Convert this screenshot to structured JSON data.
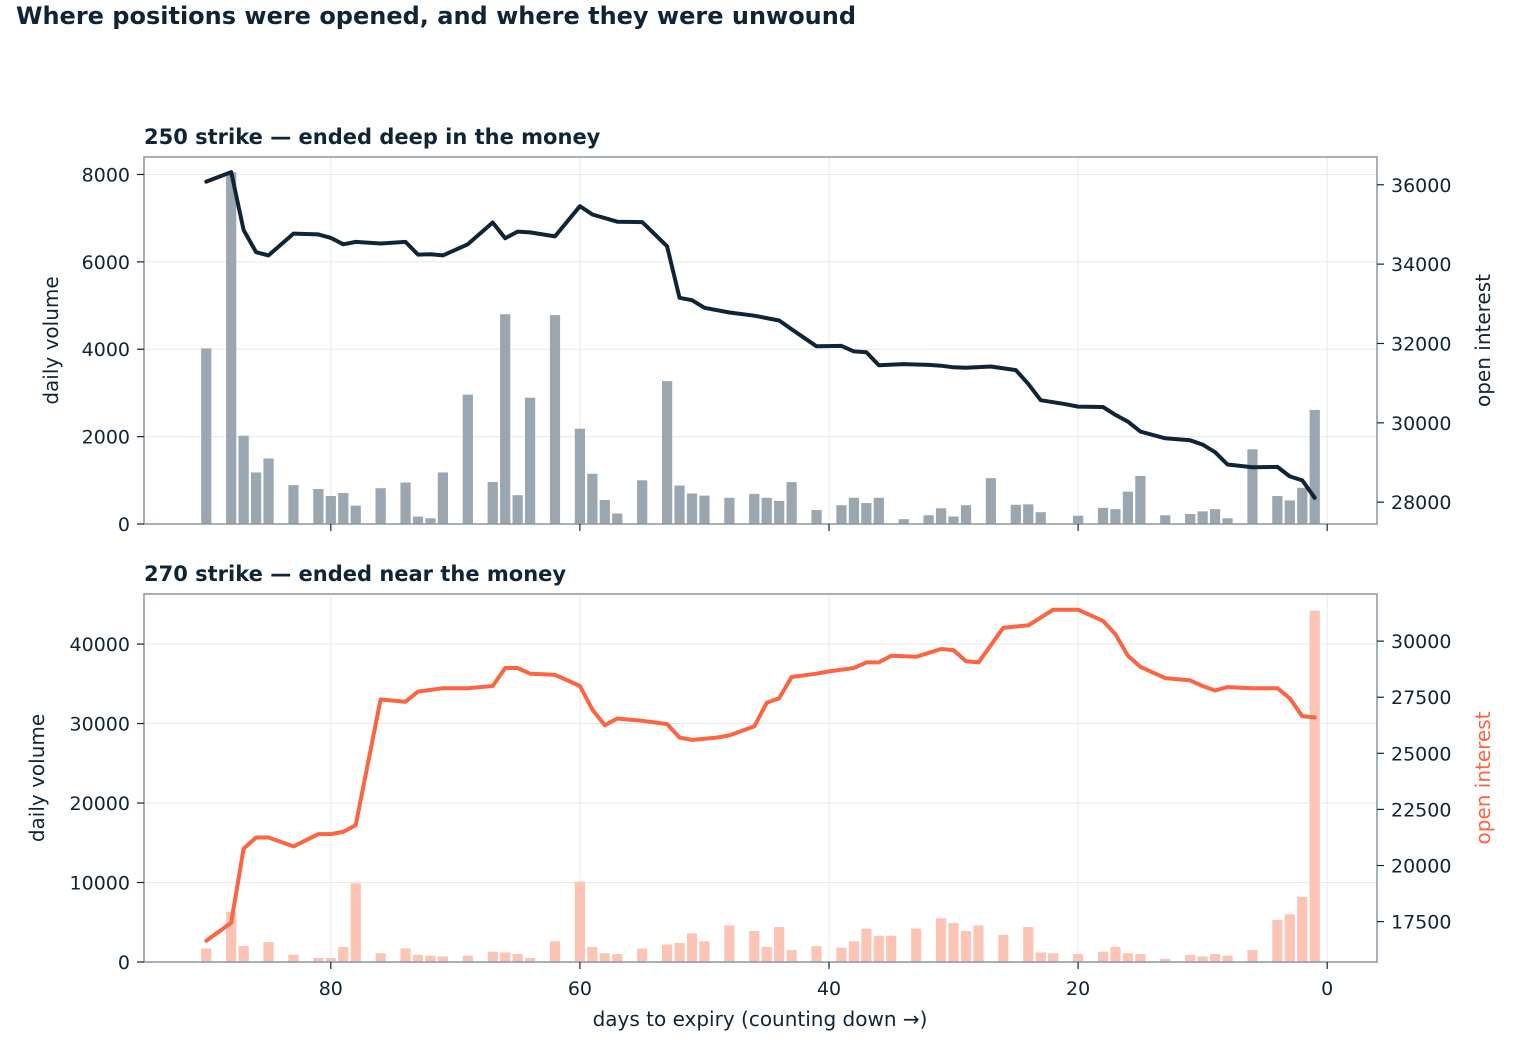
{
  "figure_title": "Where positions were opened, and where they were unwound",
  "chart_data": [
    {
      "type": "bar+line",
      "title": "250 strike — ended deep in the money",
      "xlabel": "",
      "ylabel": "daily volume",
      "y2label": "open interest",
      "xlim": [
        95,
        -4
      ],
      "xticks": [
        80,
        60,
        40,
        20,
        0
      ],
      "ylim": [
        0,
        8400
      ],
      "yticks": [
        0,
        2000,
        4000,
        6000,
        8000
      ],
      "y2lim": [
        27450,
        36700
      ],
      "y2ticks": [
        28000,
        30000,
        32000,
        34000,
        36000
      ],
      "grid": true,
      "bar_color": "#9aa6b0",
      "line_color": "#0f2537",
      "label2_color": "#0f2537",
      "volume": [
        [
          90,
          4020
        ],
        [
          88,
          8050
        ],
        [
          87,
          2020
        ],
        [
          86,
          1180
        ],
        [
          85,
          1500
        ],
        [
          83,
          890
        ],
        [
          81,
          800
        ],
        [
          80,
          640
        ],
        [
          79,
          710
        ],
        [
          78,
          420
        ],
        [
          76,
          820
        ],
        [
          74,
          950
        ],
        [
          73,
          170
        ],
        [
          72,
          130
        ],
        [
          71,
          1180
        ],
        [
          69,
          2960
        ],
        [
          67,
          960
        ],
        [
          66,
          4800
        ],
        [
          65,
          660
        ],
        [
          64,
          2890
        ],
        [
          62,
          4780
        ],
        [
          60,
          2180
        ],
        [
          59,
          1150
        ],
        [
          58,
          550
        ],
        [
          57,
          240
        ],
        [
          55,
          1000
        ],
        [
          53,
          3270
        ],
        [
          52,
          880
        ],
        [
          51,
          700
        ],
        [
          50,
          650
        ],
        [
          48,
          600
        ],
        [
          46,
          690
        ],
        [
          45,
          600
        ],
        [
          44,
          530
        ],
        [
          43,
          960
        ],
        [
          41,
          320
        ],
        [
          39,
          430
        ],
        [
          38,
          600
        ],
        [
          37,
          480
        ],
        [
          36,
          600
        ],
        [
          34,
          110
        ],
        [
          32,
          200
        ],
        [
          31,
          360
        ],
        [
          30,
          170
        ],
        [
          29,
          430
        ],
        [
          27,
          1050
        ],
        [
          25,
          440
        ],
        [
          24,
          450
        ],
        [
          23,
          270
        ],
        [
          20,
          190
        ],
        [
          18,
          370
        ],
        [
          17,
          340
        ],
        [
          16,
          740
        ],
        [
          15,
          1100
        ],
        [
          13,
          200
        ],
        [
          11,
          230
        ],
        [
          10,
          290
        ],
        [
          9,
          340
        ],
        [
          8,
          130
        ],
        [
          6,
          1710
        ],
        [
          4,
          640
        ],
        [
          3,
          540
        ],
        [
          2,
          830
        ],
        [
          1,
          2610
        ]
      ],
      "open_interest": [
        [
          90,
          36080
        ],
        [
          88,
          36320
        ],
        [
          87,
          34860
        ],
        [
          86,
          34300
        ],
        [
          85,
          34220
        ],
        [
          83,
          34770
        ],
        [
          81,
          34750
        ],
        [
          80,
          34660
        ],
        [
          79,
          34500
        ],
        [
          78,
          34560
        ],
        [
          76,
          34520
        ],
        [
          74,
          34560
        ],
        [
          73,
          34240
        ],
        [
          72,
          34250
        ],
        [
          71,
          34220
        ],
        [
          69,
          34500
        ],
        [
          67,
          35050
        ],
        [
          66,
          34650
        ],
        [
          65,
          34820
        ],
        [
          64,
          34800
        ],
        [
          62,
          34700
        ],
        [
          60,
          35460
        ],
        [
          59,
          35250
        ],
        [
          57,
          35070
        ],
        [
          55,
          35060
        ],
        [
          53,
          34450
        ],
        [
          52,
          33150
        ],
        [
          51,
          33090
        ],
        [
          50,
          32900
        ],
        [
          48,
          32780
        ],
        [
          46,
          32700
        ],
        [
          45,
          32640
        ],
        [
          44,
          32580
        ],
        [
          43,
          32360
        ],
        [
          41,
          31930
        ],
        [
          39,
          31940
        ],
        [
          38,
          31800
        ],
        [
          37,
          31780
        ],
        [
          36,
          31450
        ],
        [
          34,
          31480
        ],
        [
          32,
          31460
        ],
        [
          31,
          31440
        ],
        [
          30,
          31400
        ],
        [
          29,
          31390
        ],
        [
          27,
          31420
        ],
        [
          25,
          31330
        ],
        [
          24,
          30980
        ],
        [
          23,
          30570
        ],
        [
          21,
          30470
        ],
        [
          20,
          30410
        ],
        [
          18,
          30400
        ],
        [
          17,
          30200
        ],
        [
          16,
          30030
        ],
        [
          15,
          29780
        ],
        [
          13,
          29610
        ],
        [
          11,
          29560
        ],
        [
          10,
          29450
        ],
        [
          9,
          29260
        ],
        [
          8,
          28950
        ],
        [
          6,
          28880
        ],
        [
          4,
          28890
        ],
        [
          3,
          28650
        ],
        [
          2,
          28550
        ],
        [
          1,
          28110
        ]
      ]
    },
    {
      "type": "bar+line",
      "title": "270 strike — ended near the money",
      "xlabel": "days to expiry  (counting down →)",
      "ylabel": "daily volume",
      "y2label": "open interest",
      "xlim": [
        95,
        -4
      ],
      "xticks": [
        80,
        60,
        40,
        20,
        0
      ],
      "ylim": [
        0,
        46300
      ],
      "yticks": [
        0,
        10000,
        20000,
        30000,
        40000
      ],
      "y2lim": [
        15700,
        32100
      ],
      "y2ticks": [
        17500,
        20000,
        22500,
        25000,
        27500,
        30000
      ],
      "grid": true,
      "bar_color": "#fcc4b4",
      "line_color": "#fc6442",
      "label2_color": "#fc6442",
      "volume": [
        [
          90,
          1700
        ],
        [
          88,
          6300
        ],
        [
          87,
          2000
        ],
        [
          85,
          2500
        ],
        [
          83,
          900
        ],
        [
          81,
          500
        ],
        [
          80,
          500
        ],
        [
          79,
          1900
        ],
        [
          78,
          9900
        ],
        [
          76,
          1100
        ],
        [
          74,
          1700
        ],
        [
          73,
          900
        ],
        [
          72,
          800
        ],
        [
          71,
          700
        ],
        [
          69,
          800
        ],
        [
          67,
          1300
        ],
        [
          66,
          1200
        ],
        [
          65,
          1000
        ],
        [
          64,
          500
        ],
        [
          62,
          2600
        ],
        [
          60,
          10100
        ],
        [
          59,
          1900
        ],
        [
          58,
          1100
        ],
        [
          57,
          1000
        ],
        [
          55,
          1700
        ],
        [
          53,
          2200
        ],
        [
          52,
          2400
        ],
        [
          51,
          3600
        ],
        [
          50,
          2600
        ],
        [
          48,
          4600
        ],
        [
          46,
          3900
        ],
        [
          45,
          1900
        ],
        [
          44,
          4400
        ],
        [
          43,
          1500
        ],
        [
          41,
          2000
        ],
        [
          39,
          1800
        ],
        [
          38,
          2600
        ],
        [
          37,
          4200
        ],
        [
          36,
          3300
        ],
        [
          35,
          3300
        ],
        [
          33,
          4200
        ],
        [
          31,
          5500
        ],
        [
          30,
          4900
        ],
        [
          29,
          3900
        ],
        [
          28,
          4600
        ],
        [
          26,
          3400
        ],
        [
          24,
          4400
        ],
        [
          23,
          1200
        ],
        [
          22,
          1100
        ],
        [
          20,
          1000
        ],
        [
          18,
          1300
        ],
        [
          17,
          1900
        ],
        [
          16,
          1100
        ],
        [
          15,
          1000
        ],
        [
          13,
          400
        ],
        [
          11,
          900
        ],
        [
          10,
          700
        ],
        [
          9,
          1000
        ],
        [
          8,
          800
        ],
        [
          6,
          1500
        ],
        [
          4,
          5300
        ],
        [
          3,
          6000
        ],
        [
          2,
          8200
        ],
        [
          1,
          44200
        ]
      ],
      "open_interest": [
        [
          90,
          16650
        ],
        [
          88,
          17450
        ],
        [
          87,
          20750
        ],
        [
          86,
          21250
        ],
        [
          85,
          21250
        ],
        [
          83,
          20850
        ],
        [
          81,
          21400
        ],
        [
          80,
          21400
        ],
        [
          79,
          21500
        ],
        [
          78,
          21800
        ],
        [
          76,
          27400
        ],
        [
          74,
          27300
        ],
        [
          73,
          27750
        ],
        [
          71,
          27900
        ],
        [
          69,
          27900
        ],
        [
          67,
          28000
        ],
        [
          66,
          28800
        ],
        [
          65,
          28800
        ],
        [
          64,
          28550
        ],
        [
          62,
          28500
        ],
        [
          60,
          28000
        ],
        [
          59,
          26950
        ],
        [
          58,
          26250
        ],
        [
          57,
          26550
        ],
        [
          55,
          26450
        ],
        [
          53,
          26300
        ],
        [
          52,
          25700
        ],
        [
          51,
          25600
        ],
        [
          49,
          25700
        ],
        [
          48,
          25800
        ],
        [
          46,
          26200
        ],
        [
          45,
          27250
        ],
        [
          44,
          27450
        ],
        [
          43,
          28400
        ],
        [
          41,
          28550
        ],
        [
          40,
          28650
        ],
        [
          38,
          28800
        ],
        [
          37,
          29050
        ],
        [
          36,
          29050
        ],
        [
          35,
          29350
        ],
        [
          33,
          29300
        ],
        [
          31,
          29650
        ],
        [
          30,
          29600
        ],
        [
          29,
          29100
        ],
        [
          28,
          29050
        ],
        [
          26,
          30600
        ],
        [
          24,
          30700
        ],
        [
          22,
          31400
        ],
        [
          20,
          31400
        ],
        [
          18,
          30900
        ],
        [
          17,
          30300
        ],
        [
          16,
          29350
        ],
        [
          15,
          28850
        ],
        [
          13,
          28350
        ],
        [
          11,
          28250
        ],
        [
          10,
          28000
        ],
        [
          9,
          27800
        ],
        [
          8,
          27950
        ],
        [
          6,
          27900
        ],
        [
          4,
          27900
        ],
        [
          3,
          27450
        ],
        [
          2,
          26650
        ],
        [
          1,
          26600
        ]
      ]
    }
  ]
}
